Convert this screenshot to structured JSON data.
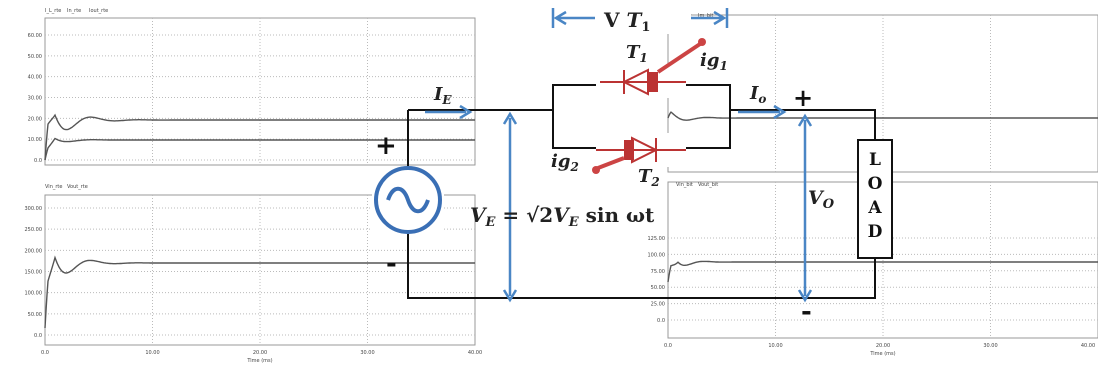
{
  "plots": [
    {
      "legend": [
        "I_L_rte",
        "In_rte",
        "Iout_rte"
      ],
      "yticks": [
        "60.00",
        "50.00",
        "40.00",
        "30.00",
        "20.00",
        "10.00",
        "0.0"
      ]
    },
    {
      "legend": [
        "Vin_rte",
        "Vout_rte"
      ],
      "yticks": [
        "300.00",
        "250.00",
        "200.00",
        "150.00",
        "100.00",
        "50.00",
        "0.0"
      ],
      "xticks": [
        "0.0",
        "10.00",
        "20.00",
        "30.00",
        "40.00"
      ],
      "xlabel": "Time (ms)"
    },
    {
      "legend": [
        "Im_bit",
        "Im_bit"
      ],
      "yticks": []
    },
    {
      "legend": [
        "Vin_bit",
        "Vout_bit"
      ],
      "yticks": [
        "125.00",
        "100.00",
        "75.00",
        "50.00",
        "25.00",
        "0.0"
      ],
      "xticks": [
        "0.0",
        "10.00",
        "20.00",
        "30.00",
        "40.00"
      ],
      "xlabel": "Time (ms)"
    }
  ],
  "circuit": {
    "vt": {
      "main": "V",
      "t": "T",
      "sub": "1"
    },
    "t1": {
      "main": "T",
      "sub": "1"
    },
    "t2": {
      "main": "T",
      "sub": "2"
    },
    "ig1": {
      "main": "ig",
      "sub": "1"
    },
    "ig2": {
      "main": "ig",
      "sub": "2"
    },
    "ie": {
      "main": "I",
      "sub": "E"
    },
    "io": {
      "main": "I",
      "sub": "o"
    },
    "vo": {
      "main": "V",
      "sub": "O"
    },
    "source_plus": "+",
    "source_minus": "-",
    "load_plus": "+",
    "load_minus": "-",
    "load": [
      "L",
      "O",
      "A",
      "D"
    ],
    "equation": {
      "lhs": "V",
      "lhs_sub": "E",
      "eq": " = ",
      "root": "√2",
      "v": "V",
      "v_sub": "E",
      "rest": " sin ωt"
    }
  }
}
